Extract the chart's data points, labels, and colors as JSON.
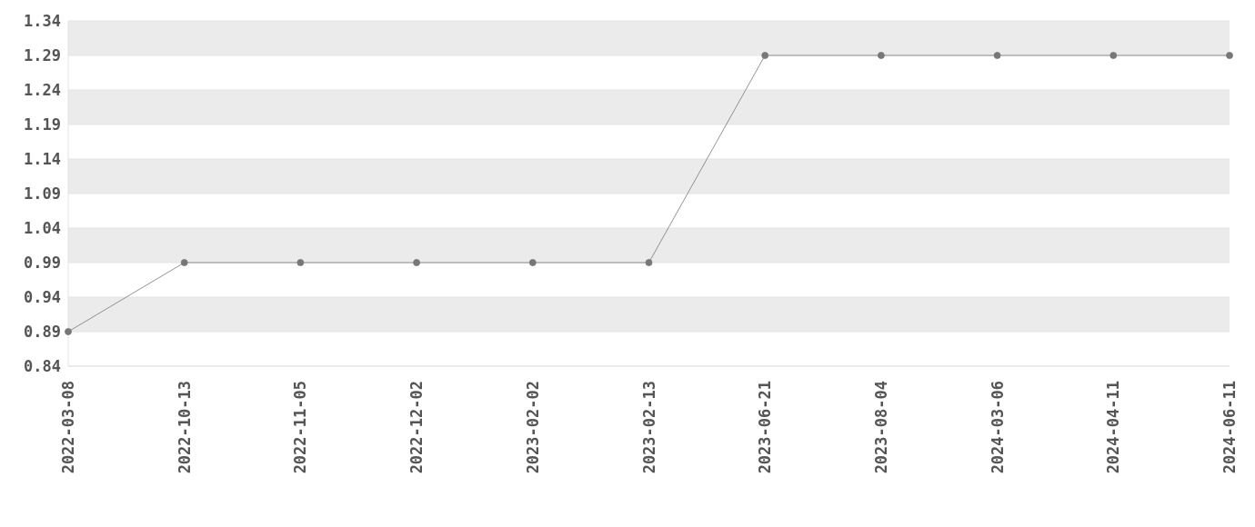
{
  "chart_data": {
    "type": "line",
    "categories": [
      "2022-03-08",
      "2022-10-13",
      "2022-11-05",
      "2022-12-02",
      "2023-02-02",
      "2023-02-13",
      "2023-06-21",
      "2023-08-04",
      "2024-03-06",
      "2024-04-11",
      "2024-06-11"
    ],
    "series": [
      {
        "color": "#777777",
        "values": [
          0.89,
          0.99,
          0.99,
          0.99,
          0.99,
          0.99,
          1.29,
          1.29,
          1.29,
          1.29,
          1.29
        ]
      }
    ],
    "ylim": [
      0.84,
      1.34
    ],
    "yticks": [
      0.84,
      0.89,
      0.94,
      0.99,
      1.04,
      1.09,
      1.14,
      1.19,
      1.24,
      1.29,
      1.34
    ],
    "grid": "y",
    "marker": "circle",
    "line_style": "solid",
    "legend": false
  }
}
